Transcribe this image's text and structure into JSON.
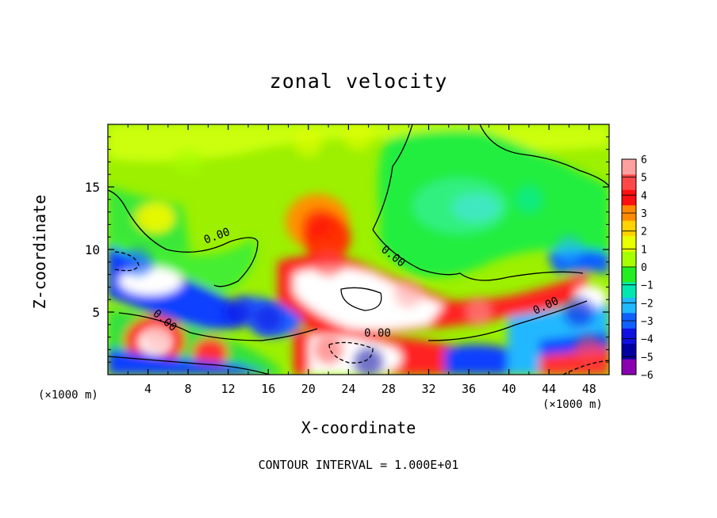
{
  "chart_data": {
    "type": "heatmap",
    "title": "zonal velocity",
    "xlabel": "X-coordinate",
    "ylabel": "Z-coordinate",
    "x_unit_label": "(×1000 m)",
    "z_unit_label": "(×1000 m)",
    "footer": "CONTOUR INTERVAL = 1.000E+01",
    "xlim": [
      0,
      50
    ],
    "ylim": [
      0,
      20
    ],
    "x_ticks": [
      4,
      8,
      12,
      16,
      20,
      24,
      28,
      32,
      36,
      40,
      44,
      48
    ],
    "y_ticks": [
      5,
      10,
      15
    ],
    "colorbar": {
      "range": [
        -6,
        6
      ],
      "labels": [
        "6",
        "5",
        "4",
        "3",
        "2",
        "1",
        "0",
        "−1",
        "−2",
        "−3",
        "−4",
        "−5",
        "−6"
      ],
      "colors": [
        "#ffa0a0",
        "#ff4848",
        "#ff1010",
        "#ff8a00",
        "#ffd400",
        "#e8ff00",
        "#a6ff00",
        "#22ee22",
        "#00e8b0",
        "#20b8ff",
        "#1060ff",
        "#1010e0",
        "#0000a0",
        "#8a00b0"
      ]
    },
    "contour_labels": [
      "0.00",
      "0.00",
      "0.00",
      "0.00",
      "0.00"
    ],
    "fields": [
      {
        "x": 25,
        "z": 19,
        "v": 1.6
      },
      {
        "x": 20,
        "z": 18.5,
        "v": 1.3
      },
      {
        "x": 8,
        "z": 17,
        "v": 0.8
      },
      {
        "x": 5,
        "z": 12.5,
        "v": 1.8
      },
      {
        "x": 21,
        "z": 12,
        "v": 3.8
      },
      {
        "x": 22,
        "z": 9,
        "v": 5.5
      },
      {
        "x": 30,
        "z": 6.5,
        "v": 6.5
      },
      {
        "x": 37,
        "z": 5,
        "v": 5.6
      },
      {
        "x": 5,
        "z": 3,
        "v": 6.2
      },
      {
        "x": 42,
        "z": 14,
        "v": -1.4
      },
      {
        "x": 46,
        "z": 10,
        "v": -2.2
      },
      {
        "x": 3,
        "z": 9,
        "v": -3.2
      },
      {
        "x": 13,
        "z": 5,
        "v": -4.2
      },
      {
        "x": 16,
        "z": 4.5,
        "v": -4.6
      },
      {
        "x": 47,
        "z": 5,
        "v": -3.8
      },
      {
        "x": 22,
        "z": 2,
        "v": 5.5
      },
      {
        "x": 48,
        "z": 2,
        "v": 5
      },
      {
        "x": 26,
        "z": 1,
        "v": -4.8
      }
    ]
  }
}
